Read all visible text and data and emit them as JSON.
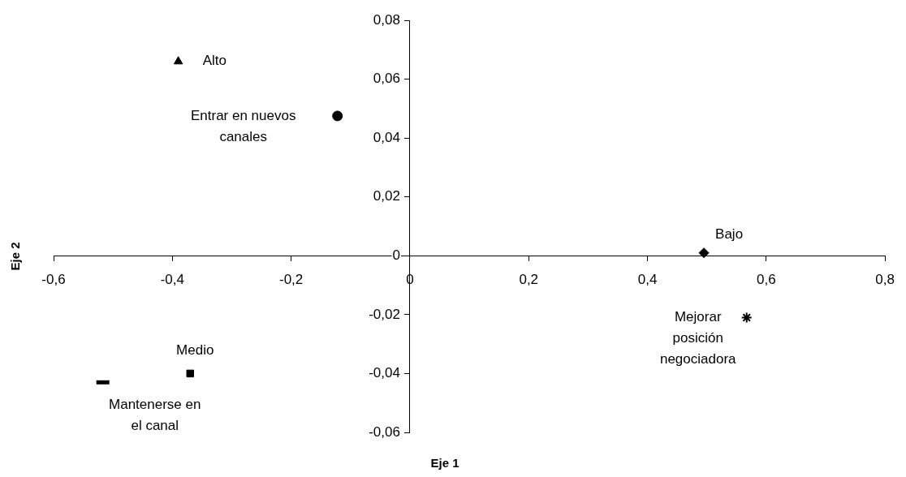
{
  "chart_data": {
    "type": "scatter",
    "xlabel": "Eje 1",
    "ylabel": "Eje 2",
    "xlim": [
      -0.6,
      0.8
    ],
    "xticks": [
      {
        "value": -0.6,
        "label": "-0,6"
      },
      {
        "value": -0.4,
        "label": "-0,4"
      },
      {
        "value": -0.2,
        "label": "-0,2"
      },
      0,
      {
        "value": 0.2,
        "label": "0,2"
      },
      {
        "value": 0.4,
        "label": "0,4"
      },
      {
        "value": 0.6,
        "label": "0,6"
      },
      {
        "value": 0.8,
        "label": "0,8"
      }
    ],
    "ylim": [
      -0.06,
      0.08
    ],
    "yticks": [
      {
        "value": -0.06,
        "label": "-0,06"
      },
      {
        "value": -0.04,
        "label": "-0,04"
      },
      {
        "value": -0.02,
        "label": "-0,02"
      },
      0,
      {
        "value": 0.02,
        "label": "0,02"
      },
      {
        "value": 0.04,
        "label": "0,04"
      },
      {
        "value": 0.06,
        "label": "0,06"
      },
      {
        "value": 0.08,
        "label": "0,08"
      }
    ],
    "grid": false,
    "legend": false,
    "series": [
      {
        "name": "Alto",
        "color": "#000000",
        "marker": "triangle",
        "x": [
          -0.39
        ],
        "values": [
          0.066
        ]
      },
      {
        "name": "Entrar en nuevos canales",
        "color": "#000000",
        "marker": "circle",
        "x": [
          -0.122
        ],
        "values": [
          0.0475
        ]
      },
      {
        "name": "Bajo",
        "color": "#000000",
        "marker": "diamond",
        "x": [
          0.495
        ],
        "values": [
          0.001
        ]
      },
      {
        "name": "Mejorar posición negociadora",
        "color": "#000000",
        "marker": "cross",
        "x": [
          0.567
        ],
        "values": [
          -0.021
        ]
      },
      {
        "name": "Medio",
        "color": "#000000",
        "marker": "square",
        "x": [
          -0.37
        ],
        "values": [
          -0.04
        ]
      },
      {
        "name": "Mantenerse en el canal",
        "color": "#000000",
        "x": [
          -0.517
        ],
        "values": [
          -0.043
        ]
      }
    ]
  }
}
